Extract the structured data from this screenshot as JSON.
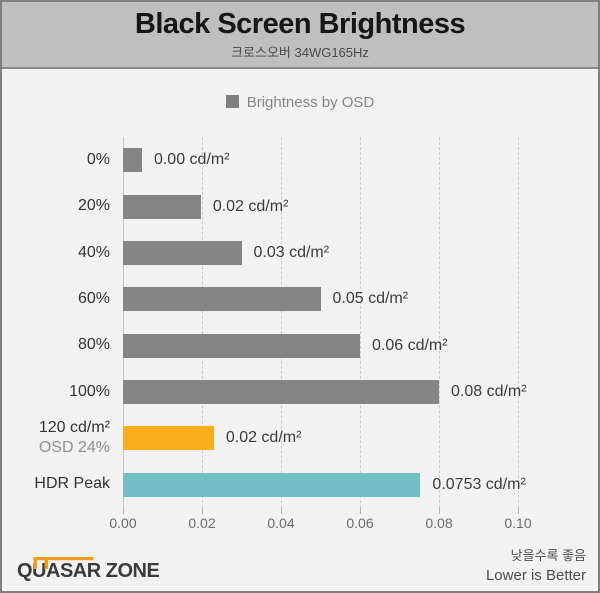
{
  "header": {
    "title": "Black Screen Brightness",
    "subtitle": "크로스오버 34WG165Hz"
  },
  "chart_data": {
    "type": "bar",
    "orientation": "horizontal",
    "title": "Black Screen Brightness",
    "subtitle": "크로스오버 34WG165Hz",
    "legend_label": "Brightness by OSD",
    "legend_color": "#7f7f7f",
    "legend_position": "top-center",
    "unit": "cd/m²",
    "xlim": [
      0,
      0.1
    ],
    "x_tick_labels": [
      "0.00",
      "0.02",
      "0.04",
      "0.06",
      "0.08",
      "0.10"
    ],
    "x_tick_values": [
      0,
      0.02,
      0.04,
      0.06,
      0.08,
      0.1
    ],
    "grid": "vertical-dashed",
    "lower_is_better": true,
    "rows": [
      {
        "label": "0%",
        "sublabel": "",
        "value": 0.0,
        "value_label": "0.00 cd/m²",
        "bar_value": 0.0048,
        "color": "#858585"
      },
      {
        "label": "20%",
        "sublabel": "",
        "value": 0.02,
        "value_label": "0.02 cd/m²",
        "bar_value": 0.0197,
        "color": "#858585"
      },
      {
        "label": "40%",
        "sublabel": "",
        "value": 0.03,
        "value_label": "0.03 cd/m²",
        "bar_value": 0.03,
        "color": "#858585"
      },
      {
        "label": "60%",
        "sublabel": "",
        "value": 0.05,
        "value_label": "0.05 cd/m²",
        "bar_value": 0.05,
        "color": "#858585"
      },
      {
        "label": "80%",
        "sublabel": "",
        "value": 0.06,
        "value_label": "0.06 cd/m²",
        "bar_value": 0.06,
        "color": "#858585"
      },
      {
        "label": "100%",
        "sublabel": "",
        "value": 0.08,
        "value_label": "0.08 cd/m²",
        "bar_value": 0.08,
        "color": "#858585"
      },
      {
        "label": "120 cd/m²",
        "sublabel": "OSD 24%",
        "value": 0.02,
        "value_label": "0.02 cd/m²",
        "bar_value": 0.023,
        "color": "#fbad1c"
      },
      {
        "label": "HDR Peak",
        "sublabel": "",
        "value": 0.0753,
        "value_label": "0.0753 cd/m²",
        "bar_value": 0.0753,
        "color": "#72bec4"
      }
    ]
  },
  "footer": {
    "logo_text": "QUASAR ZONE",
    "note_line1": "낮을수록 좋음",
    "note_line2": "Lower is Better"
  },
  "colors": {
    "page_bg": "#f2f2f2",
    "header_bg": "#bfbfbf",
    "bar_gray": "#858585",
    "bar_orange": "#fbad1c",
    "bar_teal": "#72bec4",
    "logo_accent": "#f49d1a"
  }
}
